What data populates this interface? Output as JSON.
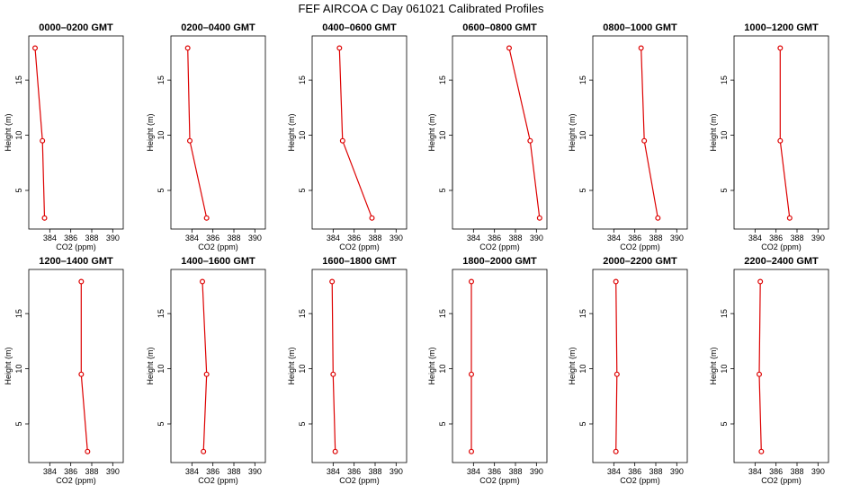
{
  "figure": {
    "title": "FEF AIRCOA C  Day 061021  Calibrated Profiles",
    "line_color": "#dd0000"
  },
  "chart_data": [
    {
      "type": "line",
      "title": "0000–0200 GMT",
      "xlabel": "CO2 (ppm)",
      "ylabel": "Height (m)",
      "xlim": [
        382,
        391
      ],
      "ylim": [
        1.5,
        19
      ],
      "xticks": [
        384,
        386,
        388,
        390
      ],
      "yticks": [
        5,
        10,
        15
      ],
      "series": [
        {
          "x": [
            382.6,
            383.3,
            383.5
          ],
          "y": [
            17.9,
            9.5,
            2.5
          ]
        }
      ]
    },
    {
      "type": "line",
      "title": "0200–0400 GMT",
      "xlabel": "CO2 (ppm)",
      "ylabel": "Height (m)",
      "xlim": [
        382,
        391
      ],
      "ylim": [
        1.5,
        19
      ],
      "xticks": [
        384,
        386,
        388,
        390
      ],
      "yticks": [
        5,
        10,
        15
      ],
      "series": [
        {
          "x": [
            383.6,
            383.8,
            385.4
          ],
          "y": [
            17.9,
            9.5,
            2.5
          ]
        }
      ]
    },
    {
      "type": "line",
      "title": "0400–0600 GMT",
      "xlabel": "CO2 (ppm)",
      "ylabel": "Height (m)",
      "xlim": [
        382,
        391
      ],
      "ylim": [
        1.5,
        19
      ],
      "xticks": [
        384,
        386,
        388,
        390
      ],
      "yticks": [
        5,
        10,
        15
      ],
      "series": [
        {
          "x": [
            384.6,
            384.9,
            387.7
          ],
          "y": [
            17.9,
            9.5,
            2.5
          ]
        }
      ]
    },
    {
      "type": "line",
      "title": "0600–0800 GMT",
      "xlabel": "CO2 (ppm)",
      "ylabel": "Height (m)",
      "xlim": [
        382,
        391
      ],
      "ylim": [
        1.5,
        19
      ],
      "xticks": [
        384,
        386,
        388,
        390
      ],
      "yticks": [
        5,
        10,
        15
      ],
      "series": [
        {
          "x": [
            387.4,
            389.4,
            390.3
          ],
          "y": [
            17.9,
            9.5,
            2.5
          ]
        }
      ]
    },
    {
      "type": "line",
      "title": "0800–1000 GMT",
      "xlabel": "CO2 (ppm)",
      "ylabel": "Height (m)",
      "xlim": [
        382,
        391
      ],
      "ylim": [
        1.5,
        19
      ],
      "xticks": [
        384,
        386,
        388,
        390
      ],
      "yticks": [
        5,
        10,
        15
      ],
      "series": [
        {
          "x": [
            386.6,
            386.9,
            388.2
          ],
          "y": [
            17.9,
            9.5,
            2.5
          ]
        }
      ]
    },
    {
      "type": "line",
      "title": "1000–1200 GMT",
      "xlabel": "CO2 (ppm)",
      "ylabel": "Height (m)",
      "xlim": [
        382,
        391
      ],
      "ylim": [
        1.5,
        19
      ],
      "xticks": [
        384,
        386,
        388,
        390
      ],
      "yticks": [
        5,
        10,
        15
      ],
      "series": [
        {
          "x": [
            386.4,
            386.4,
            387.3
          ],
          "y": [
            17.9,
            9.5,
            2.5
          ]
        }
      ]
    },
    {
      "type": "line",
      "title": "1200–1400 GMT",
      "xlabel": "CO2 (ppm)",
      "ylabel": "Height (m)",
      "xlim": [
        382,
        391
      ],
      "ylim": [
        1.5,
        19
      ],
      "xticks": [
        384,
        386,
        388,
        390
      ],
      "yticks": [
        5,
        10,
        15
      ],
      "series": [
        {
          "x": [
            387.0,
            387.0,
            387.6
          ],
          "y": [
            17.9,
            9.5,
            2.5
          ]
        }
      ]
    },
    {
      "type": "line",
      "title": "1400–1600 GMT",
      "xlabel": "CO2 (ppm)",
      "ylabel": "Height (m)",
      "xlim": [
        382,
        391
      ],
      "ylim": [
        1.5,
        19
      ],
      "xticks": [
        384,
        386,
        388,
        390
      ],
      "yticks": [
        5,
        10,
        15
      ],
      "series": [
        {
          "x": [
            385.0,
            385.4,
            385.1
          ],
          "y": [
            17.9,
            9.5,
            2.5
          ]
        }
      ]
    },
    {
      "type": "line",
      "title": "1600–1800 GMT",
      "xlabel": "CO2 (ppm)",
      "ylabel": "Height (m)",
      "xlim": [
        382,
        391
      ],
      "ylim": [
        1.5,
        19
      ],
      "xticks": [
        384,
        386,
        388,
        390
      ],
      "yticks": [
        5,
        10,
        15
      ],
      "series": [
        {
          "x": [
            383.9,
            384.0,
            384.2
          ],
          "y": [
            17.9,
            9.5,
            2.5
          ]
        }
      ]
    },
    {
      "type": "line",
      "title": "1800–2000 GMT",
      "xlabel": "CO2 (ppm)",
      "ylabel": "Height (m)",
      "xlim": [
        382,
        391
      ],
      "ylim": [
        1.5,
        19
      ],
      "xticks": [
        384,
        386,
        388,
        390
      ],
      "yticks": [
        5,
        10,
        15
      ],
      "series": [
        {
          "x": [
            383.8,
            383.8,
            383.8
          ],
          "y": [
            17.9,
            9.5,
            2.5
          ]
        }
      ]
    },
    {
      "type": "line",
      "title": "2000–2200 GMT",
      "xlabel": "CO2 (ppm)",
      "ylabel": "Height (m)",
      "xlim": [
        382,
        391
      ],
      "ylim": [
        1.5,
        19
      ],
      "xticks": [
        384,
        386,
        388,
        390
      ],
      "yticks": [
        5,
        10,
        15
      ],
      "series": [
        {
          "x": [
            384.2,
            384.3,
            384.2
          ],
          "y": [
            17.9,
            9.5,
            2.5
          ]
        }
      ]
    },
    {
      "type": "line",
      "title": "2200–2400 GMT",
      "xlabel": "CO2 (ppm)",
      "ylabel": "Height (m)",
      "xlim": [
        382,
        391
      ],
      "ylim": [
        1.5,
        19
      ],
      "xticks": [
        384,
        386,
        388,
        390
      ],
      "yticks": [
        5,
        10,
        15
      ],
      "series": [
        {
          "x": [
            384.5,
            384.4,
            384.6
          ],
          "y": [
            17.9,
            9.5,
            2.5
          ]
        }
      ]
    }
  ]
}
